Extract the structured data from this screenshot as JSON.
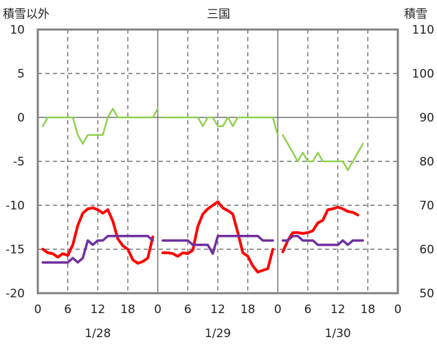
{
  "chart_data": {
    "type": "line",
    "title": "三国",
    "ylabel_left": "積雪以外",
    "ylabel_right": "積雪",
    "ylim_left": [
      -20,
      10
    ],
    "ylim_right": [
      50,
      110
    ],
    "yticks_left": [
      "10",
      "5",
      "0",
      "-5",
      "-10",
      "-15",
      "-20"
    ],
    "yticks_right": [
      "110",
      "100",
      "90",
      "80",
      "70",
      "60",
      "50"
    ],
    "x_range_hours": [
      0,
      72
    ],
    "xticks": [
      "0",
      "6",
      "12",
      "18",
      "0",
      "6",
      "12",
      "18",
      "0",
      "6",
      "12",
      "18",
      "0"
    ],
    "day_labels": [
      "1/28",
      "1/29",
      "1/30"
    ],
    "grid": true,
    "series": [
      {
        "color": "#8fd14f",
        "axis": "left",
        "segments": [
          [
            [
              1,
              -1
            ],
            [
              2,
              0
            ],
            [
              3,
              0
            ],
            [
              4,
              0
            ],
            [
              5,
              0
            ],
            [
              6,
              0
            ],
            [
              7,
              0
            ],
            [
              8,
              -2
            ],
            [
              9,
              -3
            ],
            [
              10,
              -2
            ],
            [
              11,
              -2
            ],
            [
              12,
              -2
            ],
            [
              13,
              -2
            ],
            [
              14,
              0
            ],
            [
              15,
              1
            ],
            [
              16,
              0
            ],
            [
              17,
              0
            ],
            [
              18,
              0
            ],
            [
              19,
              0
            ],
            [
              20,
              0
            ],
            [
              21,
              0
            ],
            [
              22,
              0
            ],
            [
              23,
              0
            ],
            [
              24,
              1
            ]
          ],
          [
            [
              25,
              0
            ],
            [
              26,
              0
            ],
            [
              27,
              0
            ],
            [
              28,
              0
            ],
            [
              29,
              0
            ],
            [
              30,
              0
            ],
            [
              31,
              0
            ],
            [
              32,
              0
            ],
            [
              33,
              -1
            ],
            [
              34,
              0
            ],
            [
              35,
              0
            ],
            [
              36,
              -1
            ],
            [
              37,
              -1
            ],
            [
              38,
              0
            ],
            [
              39,
              -1
            ],
            [
              40,
              0
            ],
            [
              41,
              0
            ],
            [
              42,
              0
            ],
            [
              43,
              0
            ],
            [
              44,
              0
            ],
            [
              45,
              0
            ],
            [
              46,
              0
            ],
            [
              47,
              0
            ],
            [
              48,
              -2
            ]
          ],
          [
            [
              49,
              -2
            ],
            [
              50,
              -3
            ],
            [
              51,
              -4
            ],
            [
              52,
              -5
            ],
            [
              53,
              -4
            ],
            [
              54,
              -5
            ],
            [
              55,
              -5
            ],
            [
              56,
              -4
            ],
            [
              57,
              -5
            ],
            [
              58,
              -5
            ],
            [
              59,
              -5
            ],
            [
              60,
              -5
            ],
            [
              61,
              -5
            ],
            [
              62,
              -6
            ],
            [
              63,
              -5
            ],
            [
              64,
              -4
            ],
            [
              65,
              -3
            ]
          ]
        ]
      },
      {
        "color": "#ff0000",
        "axis": "left",
        "segments": [
          [
            [
              1,
              -15
            ],
            [
              2,
              -15.4
            ],
            [
              3,
              -15.5
            ],
            [
              4,
              -15.9
            ],
            [
              5,
              -15.5
            ],
            [
              6,
              -15.7
            ],
            [
              7,
              -14.5
            ],
            [
              8,
              -12.3
            ],
            [
              9,
              -10.9
            ],
            [
              10,
              -10.4
            ],
            [
              11,
              -10.3
            ],
            [
              12,
              -10.5
            ],
            [
              13,
              -10.9
            ],
            [
              14,
              -10.5
            ],
            [
              15,
              -11.8
            ],
            [
              16,
              -13.8
            ],
            [
              17,
              -14.6
            ],
            [
              18,
              -15
            ],
            [
              19,
              -16.2
            ],
            [
              20,
              -16.6
            ],
            [
              21,
              -16.4
            ],
            [
              22,
              -16
            ],
            [
              23,
              -13.6
            ]
          ],
          [
            [
              25,
              -15.4
            ],
            [
              26,
              -15.4
            ],
            [
              27,
              -15.5
            ],
            [
              28,
              -15.8
            ],
            [
              29,
              -15.4
            ],
            [
              30,
              -15.5
            ],
            [
              31,
              -15.1
            ],
            [
              32,
              -12.4
            ],
            [
              33,
              -11
            ],
            [
              34,
              -10.4
            ],
            [
              35,
              -10
            ],
            [
              36,
              -9.6
            ],
            [
              37,
              -10.3
            ],
            [
              38,
              -10.6
            ],
            [
              39,
              -11
            ],
            [
              40,
              -13.1
            ],
            [
              41,
              -15.4
            ],
            [
              42,
              -15.8
            ],
            [
              43,
              -16.9
            ],
            [
              44,
              -17.6
            ],
            [
              45,
              -17.4
            ],
            [
              46,
              -17.2
            ],
            [
              47,
              -15
            ]
          ],
          [
            [
              49,
              -15.3
            ],
            [
              50,
              -14
            ],
            [
              51,
              -13.1
            ],
            [
              52,
              -13.1
            ],
            [
              53,
              -13.2
            ],
            [
              54,
              -13.1
            ],
            [
              55,
              -12.9
            ],
            [
              56,
              -12
            ],
            [
              57,
              -11.7
            ],
            [
              58,
              -10.5
            ],
            [
              59,
              -10.4
            ],
            [
              60,
              -10.2
            ],
            [
              61,
              -10.4
            ],
            [
              62,
              -10.7
            ],
            [
              63,
              -10.8
            ],
            [
              64,
              -11.1
            ]
          ]
        ]
      },
      {
        "color": "#7030a0",
        "axis": "left",
        "segments": [
          [
            [
              1,
              -16.5
            ],
            [
              2,
              -16.5
            ],
            [
              3,
              -16.5
            ],
            [
              4,
              -16.5
            ],
            [
              5,
              -16.5
            ],
            [
              6,
              -16.5
            ],
            [
              7,
              -16
            ],
            [
              8,
              -16.5
            ],
            [
              9,
              -16
            ],
            [
              10,
              -14
            ],
            [
              11,
              -14.5
            ],
            [
              12,
              -14
            ],
            [
              13,
              -14
            ],
            [
              14,
              -13.5
            ],
            [
              15,
              -13.5
            ],
            [
              16,
              -13.5
            ],
            [
              17,
              -13.5
            ],
            [
              18,
              -13.5
            ],
            [
              19,
              -13.5
            ],
            [
              20,
              -13.5
            ],
            [
              21,
              -13.5
            ],
            [
              22,
              -13.5
            ],
            [
              23,
              -14
            ]
          ],
          [
            [
              25,
              -14
            ],
            [
              26,
              -14
            ],
            [
              27,
              -14
            ],
            [
              28,
              -14
            ],
            [
              29,
              -14
            ],
            [
              30,
              -14
            ],
            [
              31,
              -14.5
            ],
            [
              32,
              -14.5
            ],
            [
              33,
              -14.5
            ],
            [
              34,
              -14.5
            ],
            [
              35,
              -15.5
            ],
            [
              36,
              -13.5
            ],
            [
              37,
              -13.5
            ],
            [
              38,
              -13.5
            ],
            [
              39,
              -13.5
            ],
            [
              40,
              -13.5
            ],
            [
              41,
              -13.5
            ],
            [
              42,
              -13.5
            ],
            [
              43,
              -13.5
            ],
            [
              44,
              -13.5
            ],
            [
              45,
              -14
            ],
            [
              46,
              -14
            ],
            [
              47,
              -14
            ]
          ],
          [
            [
              49,
              -14
            ],
            [
              50,
              -14
            ],
            [
              51,
              -13.5
            ],
            [
              52,
              -13.5
            ],
            [
              53,
              -14
            ],
            [
              54,
              -14
            ],
            [
              55,
              -14
            ],
            [
              56,
              -14.5
            ],
            [
              57,
              -14.5
            ],
            [
              58,
              -14.5
            ],
            [
              59,
              -14.5
            ],
            [
              60,
              -14.5
            ],
            [
              61,
              -14
            ],
            [
              62,
              -14.5
            ],
            [
              63,
              -14
            ],
            [
              64,
              -14
            ],
            [
              65,
              -14
            ]
          ]
        ]
      }
    ]
  }
}
